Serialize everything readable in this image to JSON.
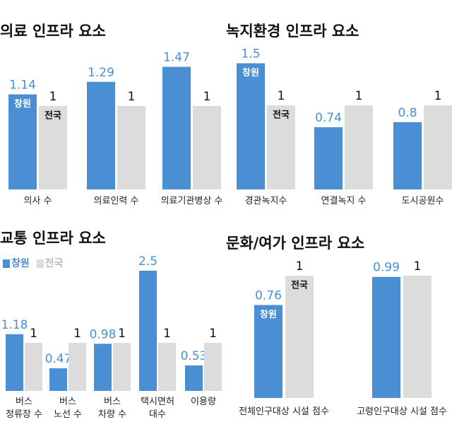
{
  "chart_data": [
    {
      "type": "bar",
      "title": "의료 인프라 요소",
      "categories": [
        "의사 수",
        "의료인력 수",
        "의료기관병상 수"
      ],
      "series": [
        {
          "name": "창원",
          "color": "#4a8fd4",
          "values": [
            1.14,
            1.29,
            1.47
          ]
        },
        {
          "name": "전국",
          "color": "#dcdcdc",
          "values": [
            1,
            1,
            1
          ]
        }
      ],
      "legend": false
    },
    {
      "type": "bar",
      "title": "녹지환경 인프라 요소",
      "categories": [
        "경관녹지수",
        "연결녹지 수",
        "도시공원수"
      ],
      "series": [
        {
          "name": "창원",
          "color": "#4a8fd4",
          "values": [
            1.5,
            0.74,
            0.8
          ]
        },
        {
          "name": "전국",
          "color": "#dcdcdc",
          "values": [
            1,
            1,
            1
          ]
        }
      ],
      "legend": false
    },
    {
      "type": "bar",
      "title": "교통 인프라 요소",
      "categories": [
        "버스\n정류장 수",
        "버스\n노선 수",
        "버스\n차량 수",
        "택시면허\n대수",
        "이용량"
      ],
      "series": [
        {
          "name": "창원",
          "color": "#4a8fd4",
          "values": [
            1.18,
            0.47,
            0.98,
            2.5,
            0.53
          ]
        },
        {
          "name": "전국",
          "color": "#dcdcdc",
          "values": [
            1,
            1,
            1,
            1,
            1
          ]
        }
      ],
      "legend": true
    },
    {
      "type": "bar",
      "title": "문화/여가 인프라 요소",
      "categories": [
        "전체인구대상 시설 점수",
        "고령인구대상 시설 점수"
      ],
      "series": [
        {
          "name": "창원",
          "color": "#4a8fd4",
          "values": [
            0.76,
            0.99
          ]
        },
        {
          "name": "전국",
          "color": "#dcdcdc",
          "values": [
            1,
            1
          ]
        }
      ],
      "legend": false
    }
  ]
}
